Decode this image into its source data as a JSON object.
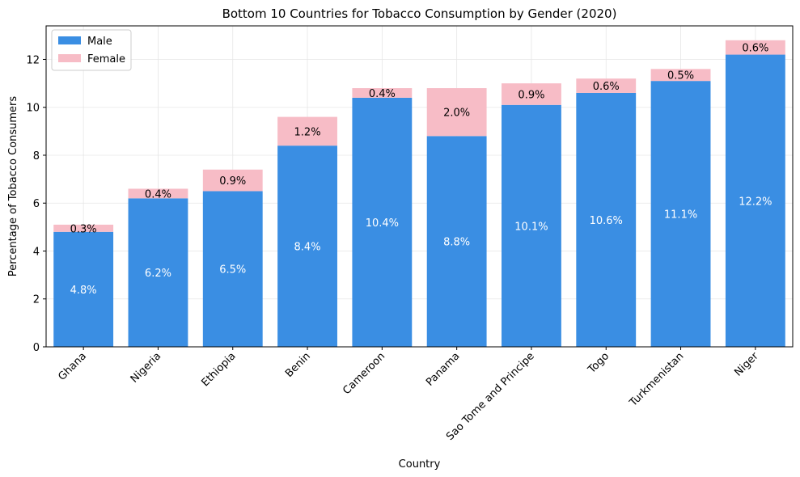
{
  "chart_data": {
    "type": "bar",
    "stacked": true,
    "title": "Bottom 10 Countries for Tobacco Consumption by Gender (2020)",
    "xlabel": "Country",
    "ylabel": "Percentage of Tobacco Consumers",
    "ylim": [
      0,
      13.4
    ],
    "yticks": [
      0,
      2,
      4,
      6,
      8,
      10,
      12
    ],
    "grid": true,
    "legend_position": "top-left",
    "categories": [
      "Ghana",
      "Nigeria",
      "Ethiopia",
      "Benin",
      "Cameroon",
      "Panama",
      "Sao Tome and Principe",
      "Togo",
      "Turkmenistan",
      "Niger"
    ],
    "series": [
      {
        "name": "Male",
        "color": "#3a8ee3",
        "label_color": "#ffffff",
        "values": [
          4.8,
          6.2,
          6.5,
          8.4,
          10.4,
          8.8,
          10.1,
          10.6,
          11.1,
          12.2
        ],
        "labels": [
          "4.8%",
          "6.2%",
          "6.5%",
          "8.4%",
          "10.4%",
          "8.8%",
          "10.1%",
          "10.6%",
          "11.1%",
          "12.2%"
        ]
      },
      {
        "name": "Female",
        "color": "#f7bcc6",
        "label_color": "#000000",
        "values": [
          0.3,
          0.4,
          0.9,
          1.2,
          0.4,
          2.0,
          0.9,
          0.6,
          0.5,
          0.6
        ],
        "labels": [
          "0.3%",
          "0.4%",
          "0.9%",
          "1.2%",
          "0.4%",
          "2.0%",
          "0.9%",
          "0.6%",
          "0.5%",
          "0.6%"
        ]
      }
    ]
  }
}
